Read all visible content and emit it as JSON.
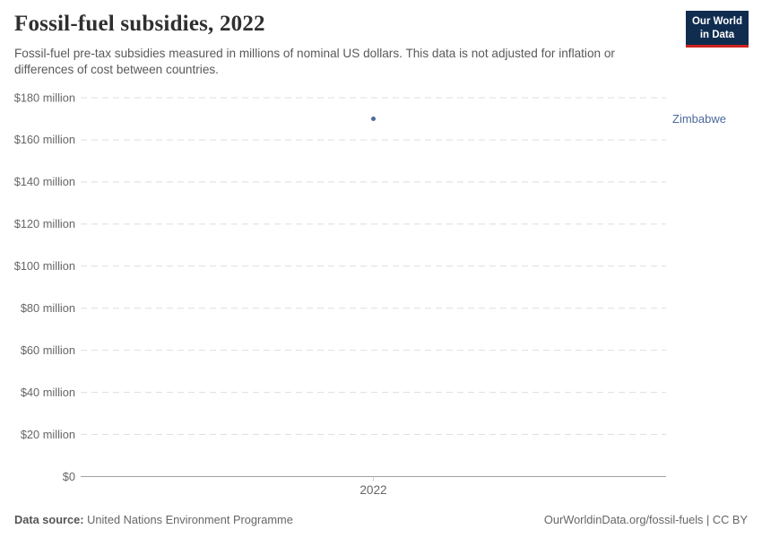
{
  "header": {
    "title": "Fossil-fuel subsidies, 2022",
    "subtitle": "Fossil-fuel pre-tax subsidies measured in millions of nominal US dollars. This data is not adjusted for inflation or differences of cost between countries.",
    "logo": {
      "line1": "Our World",
      "line2": "in Data"
    }
  },
  "chart_data": {
    "type": "scatter",
    "title": "Fossil-fuel subsidies, 2022",
    "x": [
      2022
    ],
    "xtick_labels": [
      "2022"
    ],
    "series": [
      {
        "name": "Zimbabwe",
        "values": [
          170
        ],
        "color": "#4C6A9C"
      }
    ],
    "xlabel": "",
    "ylabel": "",
    "ylim": [
      0,
      180
    ],
    "ytick_step": 20,
    "ytick_prefix": "$",
    "ytick_suffix": " million",
    "ytick_zero_label": "$0",
    "grid": "horizontal-dashed",
    "legend_position": "label-right-of-point"
  },
  "footer": {
    "source_label": "Data source:",
    "source_value": "United Nations Environment Programme",
    "credit": "OurWorldinData.org/fossil-fuels | CC BY"
  },
  "colors": {
    "series_blue": "#4C6A9C",
    "logo_bg": "#102D50",
    "logo_underline": "#CF2220",
    "gridline": "#DEDEDE",
    "axis_line": "#A0A0A0",
    "tick_mark": "#CCCCCC",
    "tick_text": "#666666",
    "title_text": "#2F2F2F",
    "subtitle_text": "#595959"
  }
}
